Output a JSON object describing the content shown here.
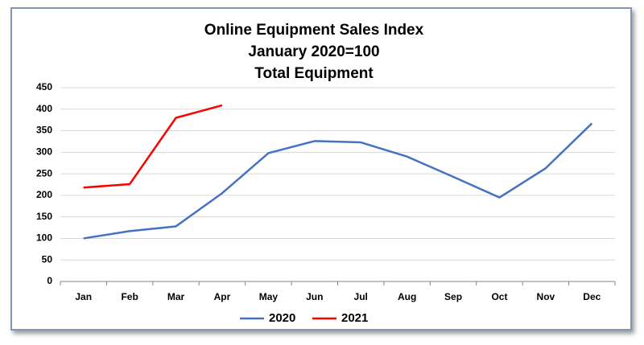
{
  "chart_data": {
    "type": "line",
    "title": "Online Equipment Sales Index",
    "subtitle": [
      "January 2020=100",
      "Total Equipment"
    ],
    "categories": [
      "Jan",
      "Feb",
      "Mar",
      "Apr",
      "May",
      "Jun",
      "Jul",
      "Aug",
      "Sep",
      "Oct",
      "Nov",
      "Dec"
    ],
    "series": [
      {
        "name": "2020",
        "color": "#4472c4",
        "values": [
          100,
          117,
          128,
          205,
          298,
          326,
          323,
          290,
          243,
          195,
          263,
          367
        ]
      },
      {
        "name": "2021",
        "color": "#ff0000",
        "values": [
          218,
          226,
          380,
          409,
          null,
          null,
          null,
          null,
          null,
          null,
          null,
          null
        ]
      }
    ],
    "ylim": [
      0,
      450
    ],
    "yticks": [
      0,
      50,
      100,
      150,
      200,
      250,
      300,
      350,
      400,
      450
    ],
    "grid": true,
    "legend": "bottom"
  }
}
